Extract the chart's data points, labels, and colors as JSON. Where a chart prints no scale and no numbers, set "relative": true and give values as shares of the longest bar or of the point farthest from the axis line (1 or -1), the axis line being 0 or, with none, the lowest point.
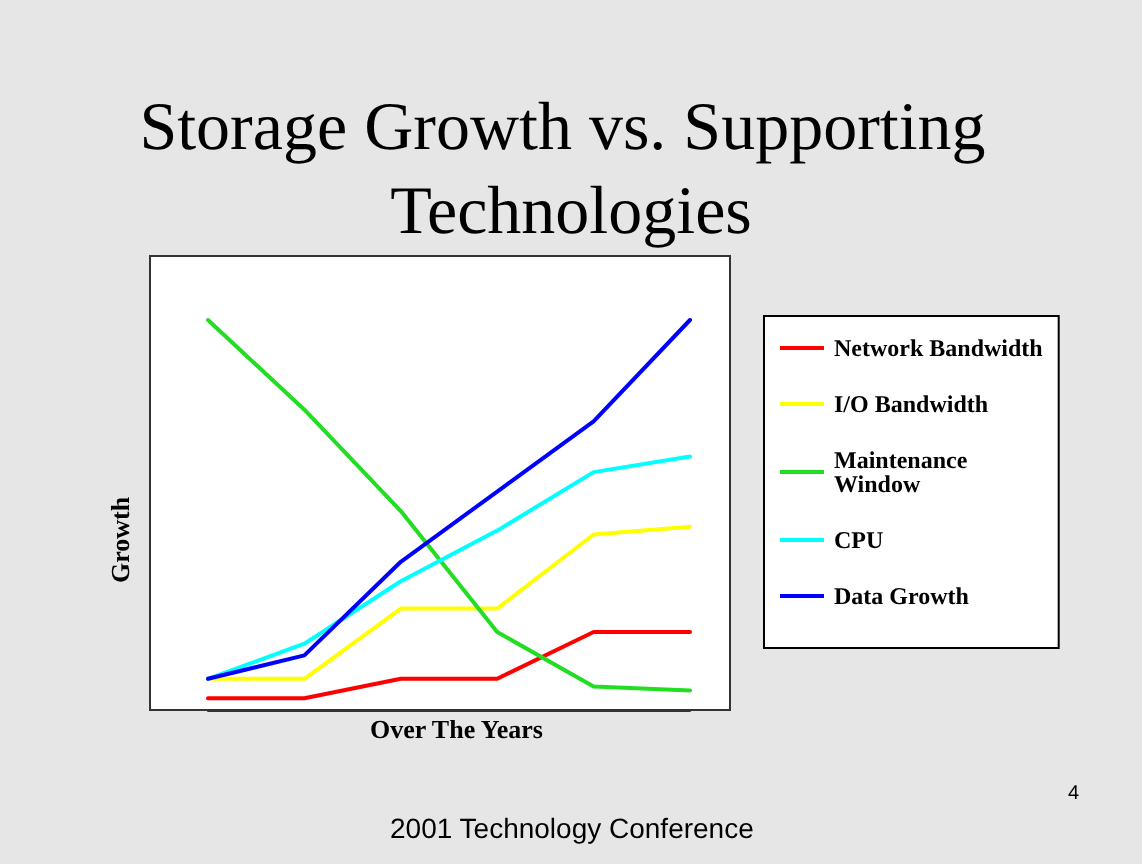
{
  "chart_data": {
    "type": "line",
    "title": "Storage Growth vs. Supporting Technologies",
    "xlabel": "Over The Years",
    "ylabel": "Growth",
    "relative": true,
    "categories": [
      null,
      null,
      null,
      null,
      null,
      null
    ],
    "series": [
      {
        "name": "Network Bandwidth",
        "color": "#ff0000",
        "values": [
          0.03,
          0.03,
          0.08,
          0.08,
          0.2,
          0.2
        ]
      },
      {
        "name": "I/O Bandwidth",
        "color": "#ffff00",
        "values": [
          0.08,
          0.08,
          0.26,
          0.26,
          0.45,
          0.47
        ]
      },
      {
        "name": "Maintenance Window",
        "color": "#22dd22",
        "values": [
          1,
          0.77,
          0.51,
          0.2,
          0.06,
          0.05
        ]
      },
      {
        "name": "CPU",
        "color": "#00ffff",
        "values": [
          0.08,
          0.17,
          0.33,
          0.46,
          0.61,
          0.65
        ]
      },
      {
        "name": "Data Growth",
        "color": "#0000ff",
        "values": [
          0.08,
          0.14,
          0.38,
          0.56,
          0.74,
          1
        ]
      }
    ],
    "legend": "right",
    "marker": "none",
    "grid": false,
    "annotations": [
      "2001 Technology Conference",
      "4"
    ]
  }
}
